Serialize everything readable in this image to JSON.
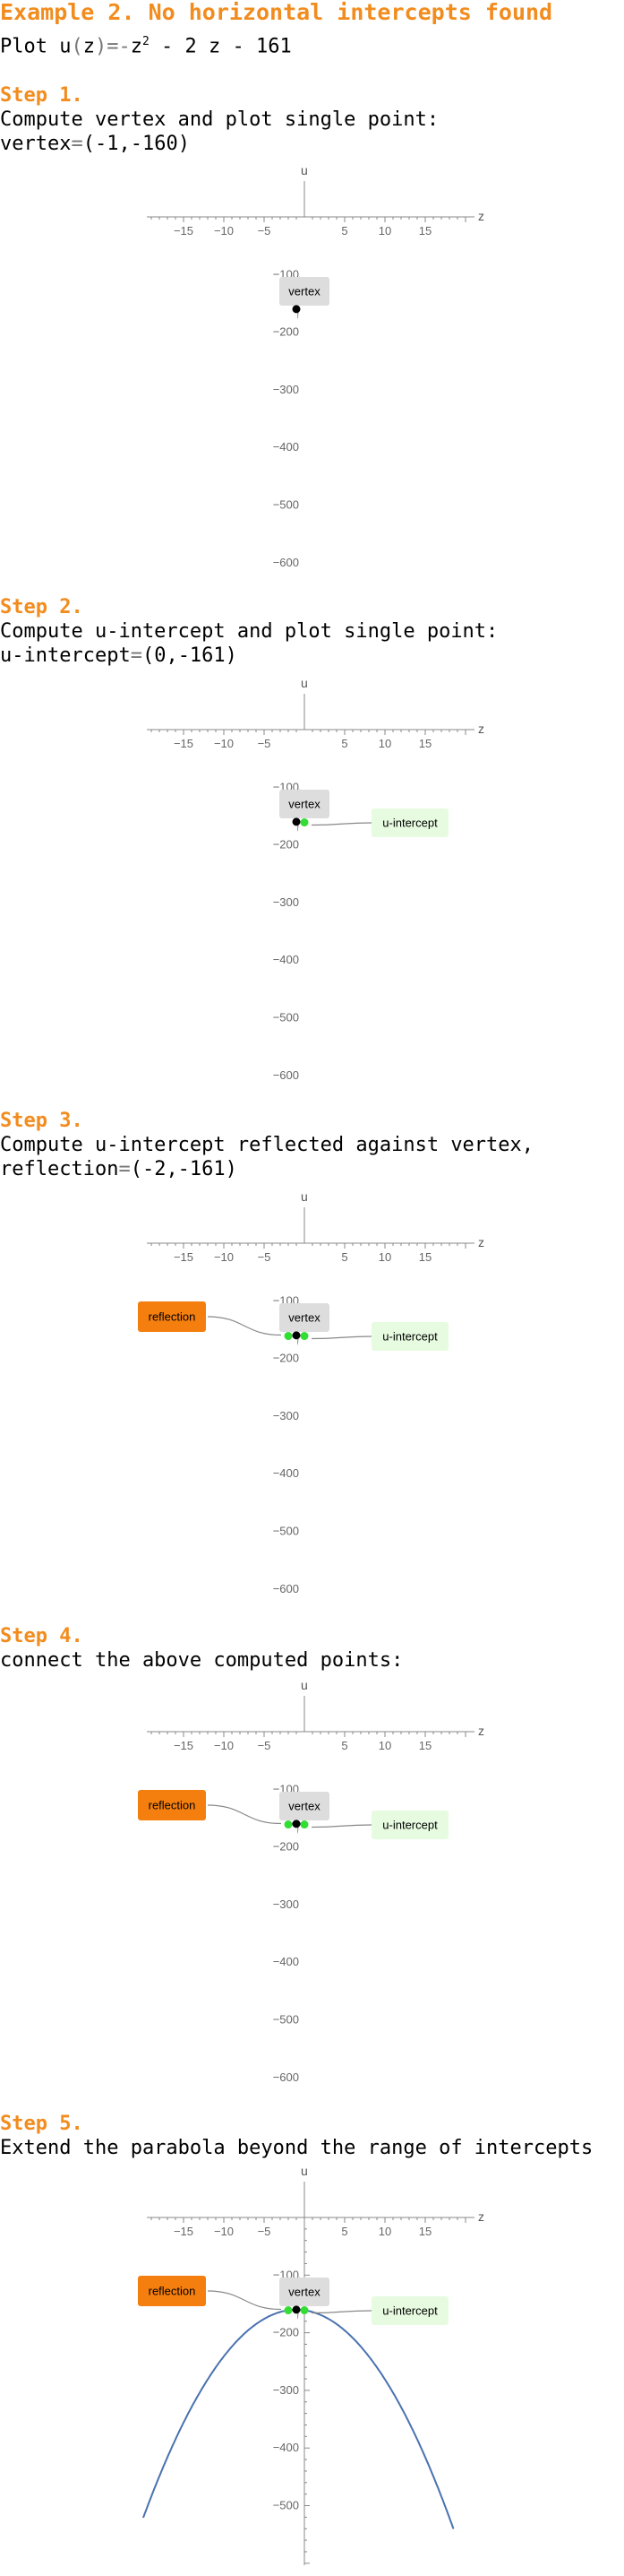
{
  "header": {
    "title": "Example 2. No horizontal intercepts found",
    "plot_instruction": {
      "prefix": "Plot ",
      "function": "u",
      "open_paren": "(",
      "variable": "z",
      "close_paren": ")",
      "equals_minus": "=-",
      "z_squared": "z",
      "exponent": "2",
      "rest": " - 2 z - 161"
    }
  },
  "steps": [
    {
      "heading": "Step 1.",
      "description": "Compute vertex and plot single point:",
      "result_name": "vertex",
      "result_equals": "=",
      "result_value": "(-1,-160)"
    },
    {
      "heading": "Step 2.",
      "description": "Compute u-intercept and plot single point:",
      "result_name": "u-intercept",
      "result_equals": "=",
      "result_value": "(0,-161)"
    },
    {
      "heading": "Step 3.",
      "description": "Compute u-intercept reflected against vertex,",
      "result_name": "reflection",
      "result_equals": "=",
      "result_value": "(-2,-161)"
    },
    {
      "heading": "Step 4.",
      "description": "connect the above computed points:"
    },
    {
      "heading": "Step 5.",
      "description": "Extend the parabola beyond the range of intercepts"
    }
  ],
  "plot_labels": {
    "x_axis": "z",
    "y_axis": "u",
    "vertex": "vertex",
    "intercept": "u-intercept",
    "reflection": "reflection"
  },
  "colors": {
    "title_orange": "#f28c1e",
    "vertex_point": "#000000",
    "intercept_point": "#33dd33",
    "vertex_box": "#dddddd",
    "intercept_box": "#e6fbe0",
    "reflection_box": "#f47f0f",
    "curve": "#4a72b0",
    "leader_line": "#888888"
  },
  "chart_data": [
    {
      "type": "scatter",
      "title": "",
      "xlabel": "z",
      "ylabel": "u",
      "xlim": [
        -19,
        20
      ],
      "ylim": [
        -630,
        0
      ],
      "x_ticks": [
        -15,
        -10,
        -5,
        5,
        10,
        15
      ],
      "y_ticks": [
        -100,
        -200,
        -300,
        -400,
        -500,
        -600
      ],
      "points": [
        {
          "x": -1,
          "y": -160,
          "label": "vertex"
        }
      ]
    },
    {
      "type": "scatter",
      "title": "",
      "xlabel": "z",
      "ylabel": "u",
      "xlim": [
        -19,
        20
      ],
      "ylim": [
        -630,
        0
      ],
      "x_ticks": [
        -15,
        -10,
        -5,
        5,
        10,
        15
      ],
      "y_ticks": [
        -100,
        -200,
        -300,
        -400,
        -500,
        -600
      ],
      "points": [
        {
          "x": -1,
          "y": -160,
          "label": "vertex"
        },
        {
          "x": 0,
          "y": -161,
          "label": "u-intercept"
        }
      ]
    },
    {
      "type": "scatter",
      "title": "",
      "xlabel": "z",
      "ylabel": "u",
      "xlim": [
        -19,
        20
      ],
      "ylim": [
        -630,
        0
      ],
      "x_ticks": [
        -15,
        -10,
        -5,
        5,
        10,
        15
      ],
      "y_ticks": [
        -100,
        -200,
        -300,
        -400,
        -500,
        -600
      ],
      "points": [
        {
          "x": -1,
          "y": -160,
          "label": "vertex"
        },
        {
          "x": 0,
          "y": -161,
          "label": "u-intercept"
        },
        {
          "x": -2,
          "y": -161,
          "label": "reflection"
        }
      ]
    },
    {
      "type": "scatter",
      "title": "",
      "xlabel": "z",
      "ylabel": "u",
      "xlim": [
        -19,
        20
      ],
      "ylim": [
        -630,
        0
      ],
      "x_ticks": [
        -15,
        -10,
        -5,
        5,
        10,
        15
      ],
      "y_ticks": [
        -100,
        -200,
        -300,
        -400,
        -500,
        -600
      ],
      "points": [
        {
          "x": -1,
          "y": -160,
          "label": "vertex"
        },
        {
          "x": 0,
          "y": -161,
          "label": "u-intercept"
        },
        {
          "x": -2,
          "y": -161,
          "label": "reflection"
        }
      ],
      "curve": {
        "function": "u(z) = -z^2 - 2z - 161",
        "z_range": [
          -2,
          0
        ]
      }
    },
    {
      "type": "line",
      "title": "",
      "xlabel": "z",
      "ylabel": "u",
      "xlim": [
        -19,
        20
      ],
      "ylim": [
        -630,
        0
      ],
      "x_ticks": [
        -15,
        -10,
        -5,
        5,
        10,
        15
      ],
      "y_ticks": [
        -100,
        -200,
        -300,
        -400,
        -500
      ],
      "points": [
        {
          "x": -1,
          "y": -160,
          "label": "vertex"
        },
        {
          "x": 0,
          "y": -161,
          "label": "u-intercept"
        },
        {
          "x": -2,
          "y": -161,
          "label": "reflection"
        }
      ],
      "curve": {
        "function": "u(z) = -z^2 - 2z - 161",
        "z_range": [
          -20,
          18.5
        ]
      }
    }
  ]
}
